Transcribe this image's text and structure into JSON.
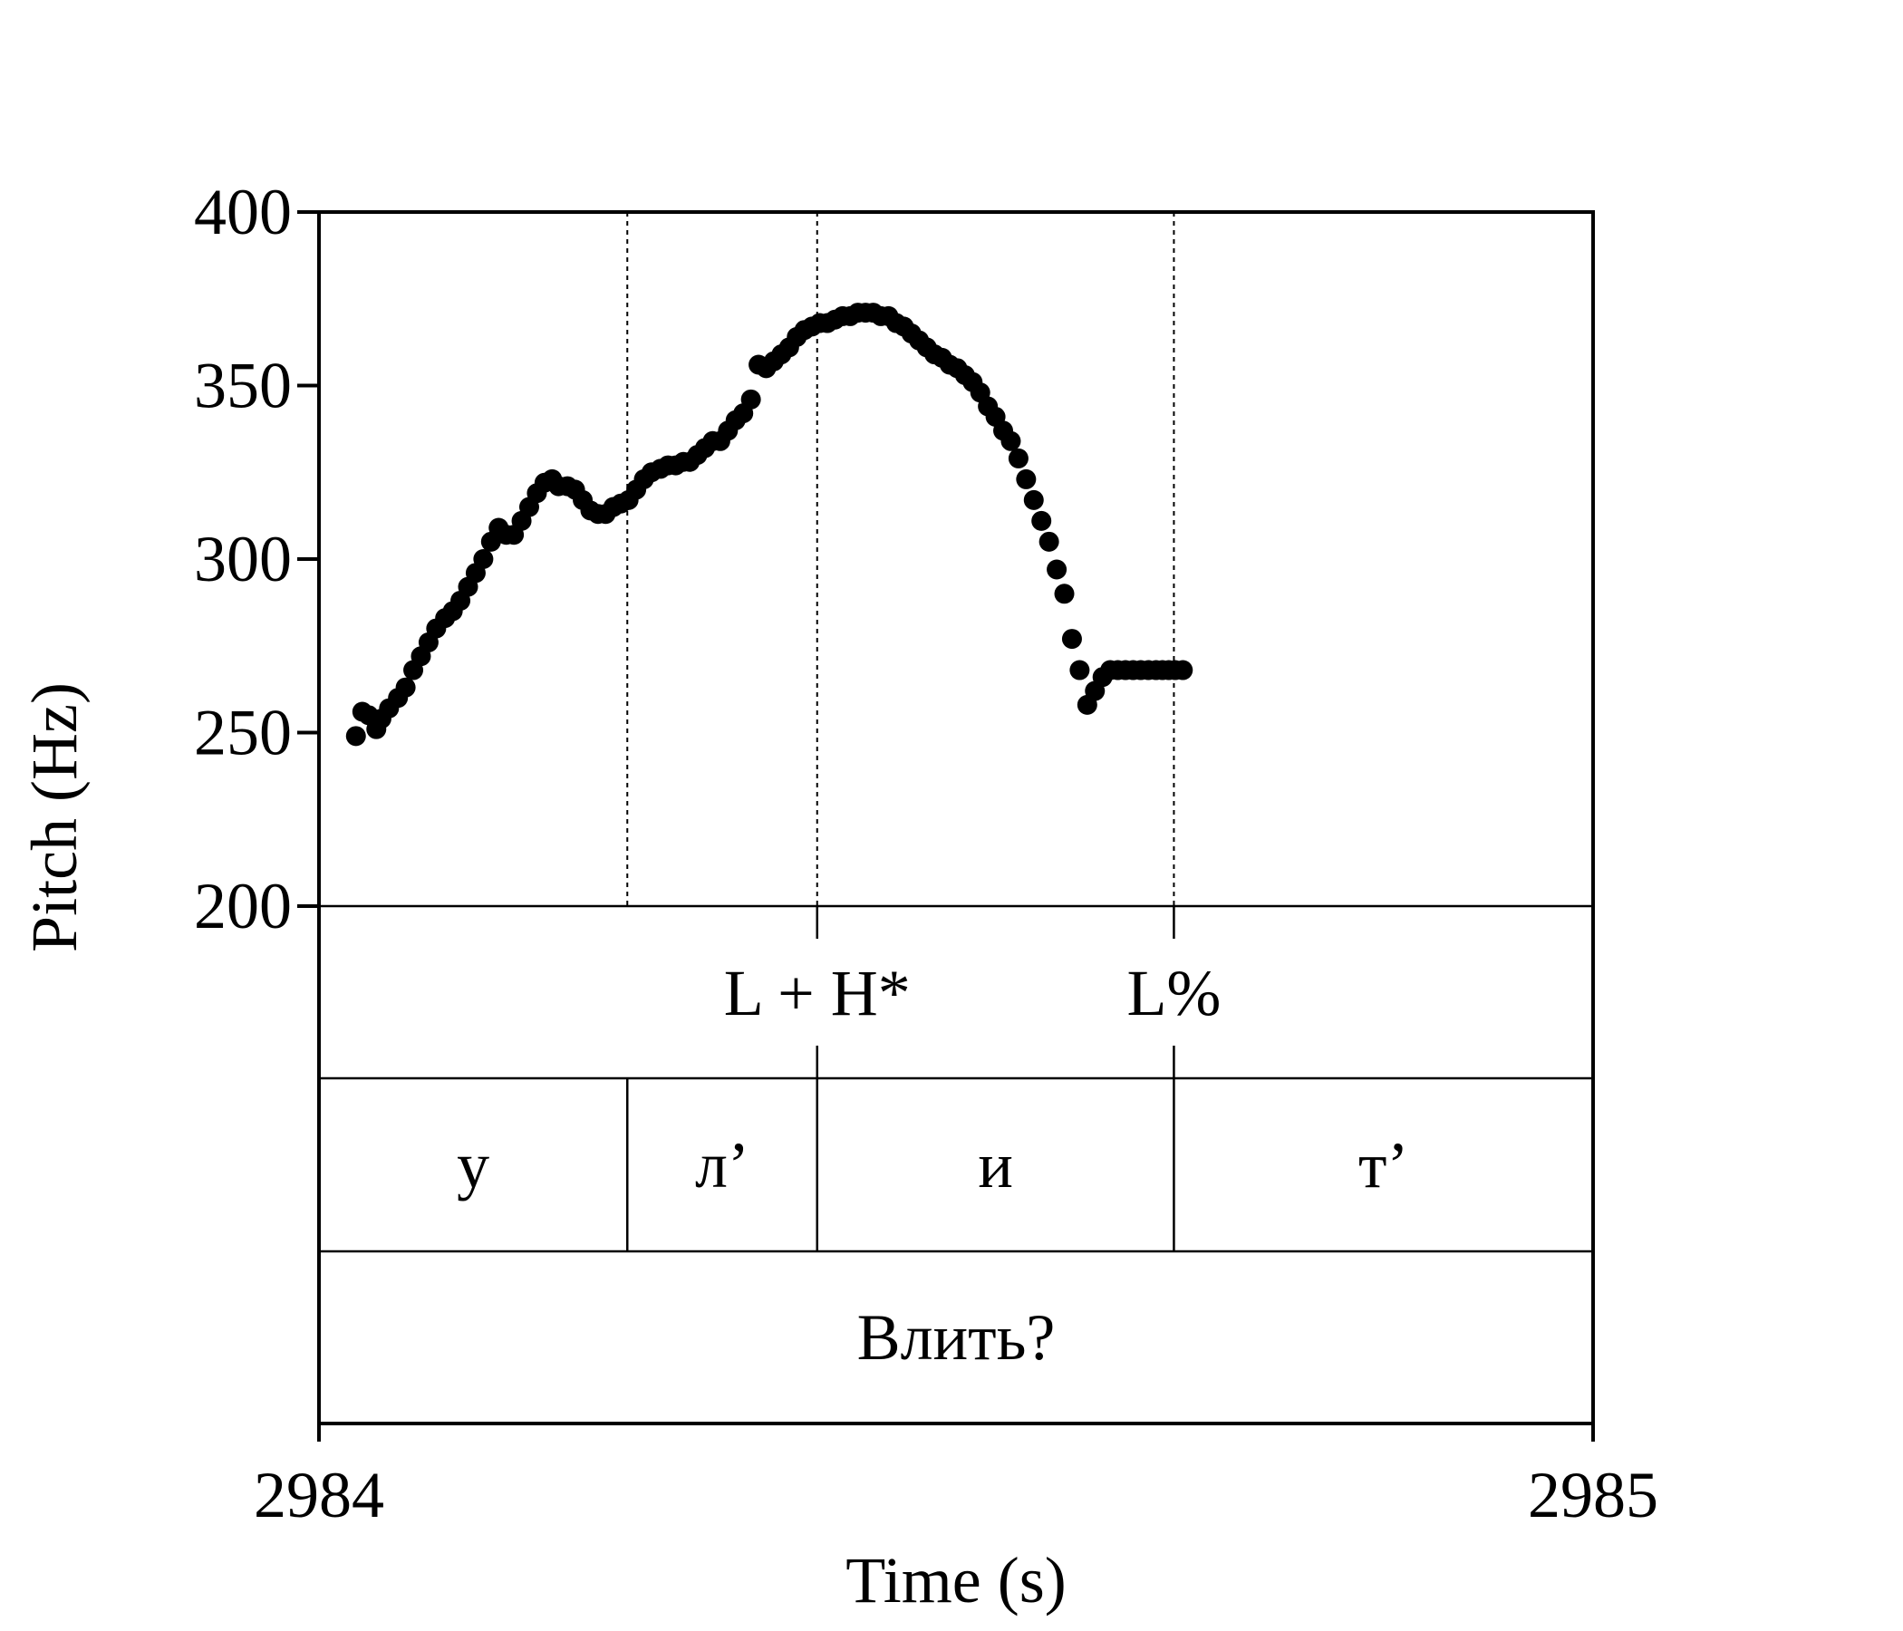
{
  "chart_data": {
    "type": "scatter",
    "title": "",
    "xlabel": "Time (s)",
    "ylabel": "Pitch (Hz)",
    "xlim": [
      2984,
      2985
    ],
    "ylim": [
      200,
      400
    ],
    "x_ticks": [
      "2984",
      "2985"
    ],
    "y_ticks": [
      "200",
      "250",
      "300",
      "350",
      "400"
    ],
    "boundaries": [
      2984.242,
      2984.391,
      2984.671
    ],
    "tiers": [
      {
        "name": "tones",
        "labels": [
          {
            "text": "L + H*",
            "t": 2984.391
          },
          {
            "text": "L%",
            "t": 2984.671
          }
        ]
      },
      {
        "name": "segments",
        "intervals": [
          {
            "text": "у",
            "start": 2984.0,
            "end": 2984.242
          },
          {
            "text": "л’",
            "start": 2984.242,
            "end": 2984.391
          },
          {
            "text": "и",
            "start": 2984.391,
            "end": 2984.671
          },
          {
            "text": "т’",
            "start": 2984.671,
            "end": 2985.0
          }
        ]
      },
      {
        "name": "word",
        "intervals": [
          {
            "text": "Влить?",
            "start": 2984.0,
            "end": 2985.0
          }
        ]
      }
    ],
    "series": [
      {
        "x": [
          2984.029,
          2984.034,
          2984.039,
          2984.045,
          2984.049,
          2984.055,
          2984.062,
          2984.068,
          2984.074,
          2984.08,
          2984.086,
          2984.092,
          2984.099,
          2984.105,
          2984.111,
          2984.117,
          2984.123,
          2984.129,
          2984.135,
          2984.141,
          2984.147,
          2984.153,
          2984.159,
          2984.165,
          2984.171,
          2984.177,
          2984.183,
          2984.188,
          2984.195,
          2984.201,
          2984.207,
          2984.213,
          2984.219,
          2984.225,
          2984.231,
          2984.237,
          2984.243,
          2984.249,
          2984.255,
          2984.261,
          2984.268,
          2984.274,
          2984.28,
          2984.286,
          2984.291,
          2984.297,
          2984.303,
          2984.309,
          2984.315,
          2984.321,
          2984.327,
          2984.333,
          2984.339,
          2984.345,
          2984.351,
          2984.357,
          2984.363,
          2984.369,
          2984.375,
          2984.381,
          2984.387,
          2984.393,
          2984.399,
          2984.405,
          2984.411,
          2984.417,
          2984.423,
          2984.429,
          2984.435,
          2984.441,
          2984.447,
          2984.453,
          2984.459,
          2984.465,
          2984.471,
          2984.477,
          2984.483,
          2984.489,
          2984.495,
          2984.501,
          2984.507,
          2984.513,
          2984.519,
          2984.525,
          2984.531,
          2984.537,
          2984.543,
          2984.549,
          2984.555,
          2984.561,
          2984.567,
          2984.573,
          2984.579,
          2984.585,
          2984.591,
          2984.597,
          2984.603,
          2984.609,
          2984.615,
          2984.621,
          2984.627,
          2984.633,
          2984.639,
          2984.645,
          2984.651,
          2984.657,
          2984.662,
          2984.667,
          2984.672,
          2984.678,
          2984.684
        ],
        "y": [
          249,
          256,
          255,
          251,
          254,
          257,
          260,
          263,
          268,
          272,
          276,
          280,
          283,
          285,
          288,
          292,
          296,
          300,
          305,
          309,
          307,
          307,
          311,
          315,
          319,
          322,
          323,
          321,
          321,
          320,
          317,
          314,
          313,
          313,
          315,
          316,
          317,
          320,
          323,
          325,
          326,
          327,
          327,
          328,
          328,
          330,
          332,
          334,
          334,
          337,
          340,
          342,
          346,
          356,
          355,
          357,
          359,
          361,
          364,
          366,
          367,
          368,
          368,
          369,
          370,
          370,
          371,
          371,
          371,
          370,
          370,
          368,
          367,
          365,
          363,
          361,
          359,
          358,
          356,
          355,
          353,
          351,
          348,
          344,
          341,
          337,
          334,
          329,
          323,
          317,
          311,
          305,
          297,
          290,
          277,
          268,
          258,
          262,
          266,
          268,
          268,
          268,
          268,
          268,
          268,
          268,
          268,
          268,
          268,
          268,
          268
        ]
      }
    ]
  }
}
